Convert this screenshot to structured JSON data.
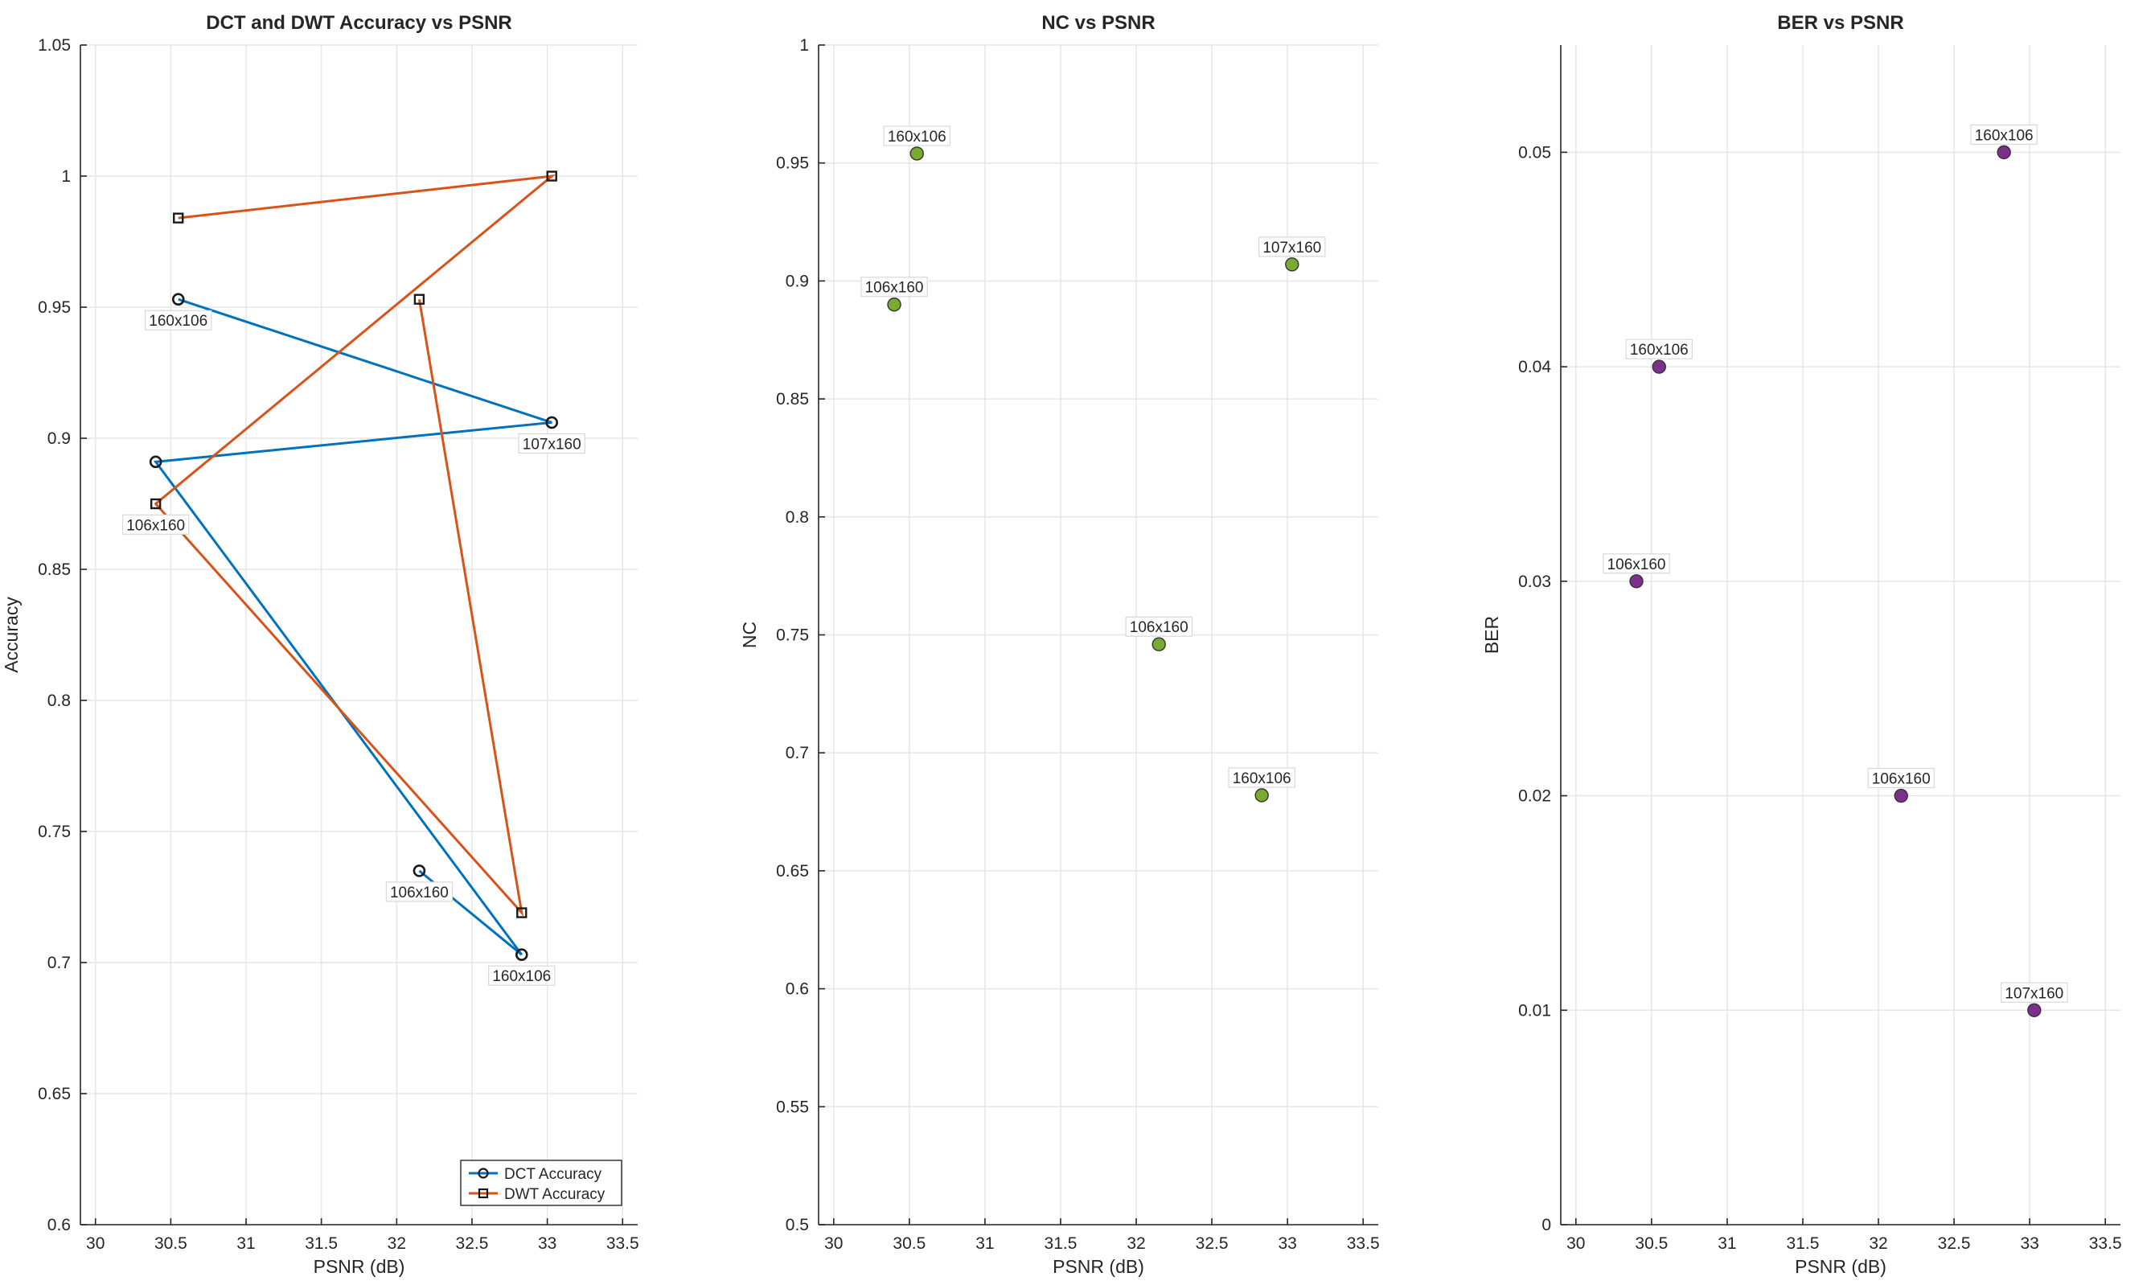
{
  "chart_data": [
    {
      "type": "line",
      "title": "DCT and DWT Accuracy vs PSNR",
      "xlabel": "PSNR (dB)",
      "ylabel": "Accuracy",
      "xlim": [
        29.9,
        33.6
      ],
      "ylim": [
        0.6,
        1.05
      ],
      "xticks": [
        30,
        30.5,
        31,
        31.5,
        32,
        32.5,
        33,
        33.5
      ],
      "yticks": [
        0.6,
        0.65,
        0.7,
        0.75,
        0.8,
        0.85,
        0.9,
        0.95,
        1,
        1.05
      ],
      "grid": true,
      "legend": {
        "position": "bottom-right",
        "entries": [
          "DCT Accuracy",
          "DWT Accuracy"
        ]
      },
      "series": [
        {
          "name": "DCT Accuracy",
          "color": "#0072BD",
          "marker": "circle",
          "x": [
            30.55,
            33.03,
            30.4,
            32.83,
            32.15
          ],
          "y": [
            0.953,
            0.906,
            0.891,
            0.703,
            0.735
          ]
        },
        {
          "name": "DWT Accuracy",
          "color": "#D95319",
          "marker": "square",
          "x": [
            30.55,
            33.03,
            30.4,
            32.83,
            32.15
          ],
          "y": [
            0.984,
            1.0,
            0.875,
            0.719,
            0.953
          ]
        }
      ],
      "annotations": [
        {
          "text": "160x106",
          "x": 30.55,
          "y": 0.953,
          "pos": "below"
        },
        {
          "text": "107x160",
          "x": 33.03,
          "y": 0.906,
          "pos": "below"
        },
        {
          "text": "106x160",
          "x": 30.4,
          "y": 0.891,
          "pos": "below-far"
        },
        {
          "text": "160x106",
          "x": 32.83,
          "y": 0.703,
          "pos": "below"
        },
        {
          "text": "106x160",
          "x": 32.15,
          "y": 0.735,
          "pos": "below"
        }
      ]
    },
    {
      "type": "scatter",
      "title": "NC vs PSNR",
      "xlabel": "PSNR (dB)",
      "ylabel": "NC",
      "xlim": [
        29.9,
        33.6
      ],
      "ylim": [
        0.5,
        1.0
      ],
      "xticks": [
        30,
        30.5,
        31,
        31.5,
        32,
        32.5,
        33,
        33.5
      ],
      "yticks": [
        0.5,
        0.55,
        0.6,
        0.65,
        0.7,
        0.75,
        0.8,
        0.85,
        0.9,
        0.95,
        1
      ],
      "grid": true,
      "series": [
        {
          "name": "NC",
          "color": "#77AC30",
          "marker": "circle-filled",
          "x": [
            30.55,
            33.03,
            30.4,
            32.83,
            32.15
          ],
          "y": [
            0.954,
            0.907,
            0.89,
            0.682,
            0.746
          ]
        }
      ],
      "annotations": [
        {
          "text": "160x106",
          "x": 30.55,
          "y": 0.954,
          "pos": "above"
        },
        {
          "text": "107x160",
          "x": 33.03,
          "y": 0.907,
          "pos": "above"
        },
        {
          "text": "106x160",
          "x": 30.4,
          "y": 0.89,
          "pos": "above"
        },
        {
          "text": "160x106",
          "x": 32.83,
          "y": 0.682,
          "pos": "above"
        },
        {
          "text": "106x160",
          "x": 32.15,
          "y": 0.746,
          "pos": "above"
        }
      ]
    },
    {
      "type": "scatter",
      "title": "BER vs PSNR",
      "xlabel": "PSNR (dB)",
      "ylabel": "BER",
      "xlim": [
        29.9,
        33.6
      ],
      "ylim": [
        0,
        0.055
      ],
      "xticks": [
        30,
        30.5,
        31,
        31.5,
        32,
        32.5,
        33,
        33.5
      ],
      "yticks": [
        0,
        0.01,
        0.02,
        0.03,
        0.04,
        0.05
      ],
      "grid": true,
      "series": [
        {
          "name": "BER",
          "color": "#7E2F8E",
          "marker": "circle-filled",
          "x": [
            30.55,
            33.03,
            30.4,
            32.83,
            32.15
          ],
          "y": [
            0.04,
            0.01,
            0.03,
            0.05,
            0.02
          ]
        }
      ],
      "annotations": [
        {
          "text": "160x106",
          "x": 30.55,
          "y": 0.04,
          "pos": "above"
        },
        {
          "text": "107x160",
          "x": 33.03,
          "y": 0.01,
          "pos": "above"
        },
        {
          "text": "106x160",
          "x": 30.4,
          "y": 0.03,
          "pos": "above"
        },
        {
          "text": "160x106",
          "x": 32.83,
          "y": 0.05,
          "pos": "above"
        },
        {
          "text": "106x160",
          "x": 32.15,
          "y": 0.02,
          "pos": "above"
        }
      ]
    }
  ]
}
